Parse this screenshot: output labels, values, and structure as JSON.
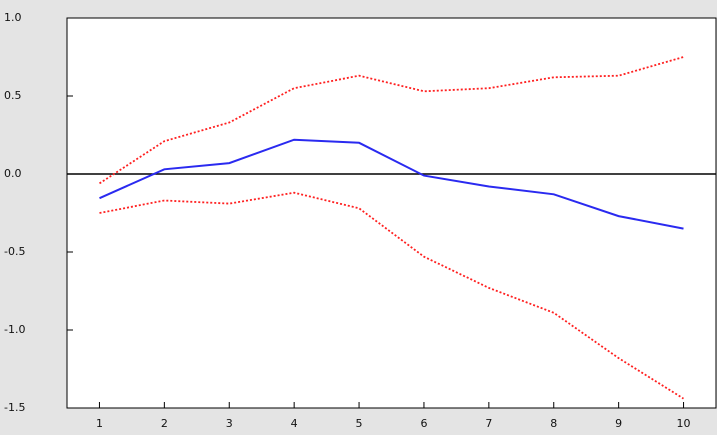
{
  "chart_data": {
    "type": "line",
    "x": [
      1,
      2,
      3,
      4,
      5,
      6,
      7,
      8,
      9,
      10
    ],
    "series": [
      {
        "color": "#2a2af0",
        "style": "solid",
        "values": [
          -0.155,
          0.03,
          0.07,
          0.22,
          0.2,
          -0.01,
          -0.08,
          -0.13,
          -0.27,
          -0.35
        ]
      },
      {
        "color": "#ff2020",
        "style": "dotted",
        "values": [
          -0.06,
          0.21,
          0.33,
          0.55,
          0.63,
          0.53,
          0.55,
          0.62,
          0.63,
          0.75
        ]
      },
      {
        "color": "#ff2020",
        "style": "dotted",
        "values": [
          -0.25,
          -0.17,
          -0.19,
          -0.12,
          -0.22,
          -0.53,
          -0.73,
          -0.89,
          -1.18,
          -1.44
        ]
      }
    ],
    "xlim": [
      0.5,
      10.5
    ],
    "xticks": [
      1,
      2,
      3,
      4,
      5,
      6,
      7,
      8,
      9,
      10
    ],
    "ylim": [
      -1.5,
      1.0
    ],
    "yticks": [
      {
        "value": -1.5,
        "label": "-1.5"
      },
      {
        "value": -1.0,
        "label": "-1.0"
      },
      {
        "value": -0.5,
        "label": "-0.5"
      },
      {
        "value": 0,
        "label": "0.0"
      },
      {
        "value": 0.5,
        "label": "0.5"
      },
      {
        "value": 1.0,
        "label": "1.0"
      }
    ],
    "zero_line": true
  }
}
